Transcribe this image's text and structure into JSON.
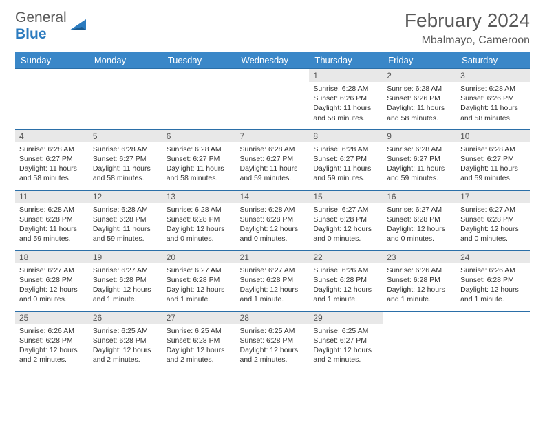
{
  "logo": {
    "word1": "General",
    "word2": "Blue"
  },
  "title": "February 2024",
  "location": "Mbalmayo, Cameroon",
  "colors": {
    "header_bg": "#3a87c8",
    "header_border": "#2b6fa8",
    "daynum_bg": "#e8e8e8",
    "text": "#333333",
    "muted": "#595959",
    "logo_blue": "#2b7bbf"
  },
  "day_headers": [
    "Sunday",
    "Monday",
    "Tuesday",
    "Wednesday",
    "Thursday",
    "Friday",
    "Saturday"
  ],
  "weeks": [
    [
      {
        "empty": true
      },
      {
        "empty": true
      },
      {
        "empty": true
      },
      {
        "empty": true
      },
      {
        "n": "1",
        "sunrise": "Sunrise: 6:28 AM",
        "sunset": "Sunset: 6:26 PM",
        "daylight": "Daylight: 11 hours and 58 minutes."
      },
      {
        "n": "2",
        "sunrise": "Sunrise: 6:28 AM",
        "sunset": "Sunset: 6:26 PM",
        "daylight": "Daylight: 11 hours and 58 minutes."
      },
      {
        "n": "3",
        "sunrise": "Sunrise: 6:28 AM",
        "sunset": "Sunset: 6:26 PM",
        "daylight": "Daylight: 11 hours and 58 minutes."
      }
    ],
    [
      {
        "n": "4",
        "sunrise": "Sunrise: 6:28 AM",
        "sunset": "Sunset: 6:27 PM",
        "daylight": "Daylight: 11 hours and 58 minutes."
      },
      {
        "n": "5",
        "sunrise": "Sunrise: 6:28 AM",
        "sunset": "Sunset: 6:27 PM",
        "daylight": "Daylight: 11 hours and 58 minutes."
      },
      {
        "n": "6",
        "sunrise": "Sunrise: 6:28 AM",
        "sunset": "Sunset: 6:27 PM",
        "daylight": "Daylight: 11 hours and 58 minutes."
      },
      {
        "n": "7",
        "sunrise": "Sunrise: 6:28 AM",
        "sunset": "Sunset: 6:27 PM",
        "daylight": "Daylight: 11 hours and 59 minutes."
      },
      {
        "n": "8",
        "sunrise": "Sunrise: 6:28 AM",
        "sunset": "Sunset: 6:27 PM",
        "daylight": "Daylight: 11 hours and 59 minutes."
      },
      {
        "n": "9",
        "sunrise": "Sunrise: 6:28 AM",
        "sunset": "Sunset: 6:27 PM",
        "daylight": "Daylight: 11 hours and 59 minutes."
      },
      {
        "n": "10",
        "sunrise": "Sunrise: 6:28 AM",
        "sunset": "Sunset: 6:27 PM",
        "daylight": "Daylight: 11 hours and 59 minutes."
      }
    ],
    [
      {
        "n": "11",
        "sunrise": "Sunrise: 6:28 AM",
        "sunset": "Sunset: 6:28 PM",
        "daylight": "Daylight: 11 hours and 59 minutes."
      },
      {
        "n": "12",
        "sunrise": "Sunrise: 6:28 AM",
        "sunset": "Sunset: 6:28 PM",
        "daylight": "Daylight: 11 hours and 59 minutes."
      },
      {
        "n": "13",
        "sunrise": "Sunrise: 6:28 AM",
        "sunset": "Sunset: 6:28 PM",
        "daylight": "Daylight: 12 hours and 0 minutes."
      },
      {
        "n": "14",
        "sunrise": "Sunrise: 6:28 AM",
        "sunset": "Sunset: 6:28 PM",
        "daylight": "Daylight: 12 hours and 0 minutes."
      },
      {
        "n": "15",
        "sunrise": "Sunrise: 6:27 AM",
        "sunset": "Sunset: 6:28 PM",
        "daylight": "Daylight: 12 hours and 0 minutes."
      },
      {
        "n": "16",
        "sunrise": "Sunrise: 6:27 AM",
        "sunset": "Sunset: 6:28 PM",
        "daylight": "Daylight: 12 hours and 0 minutes."
      },
      {
        "n": "17",
        "sunrise": "Sunrise: 6:27 AM",
        "sunset": "Sunset: 6:28 PM",
        "daylight": "Daylight: 12 hours and 0 minutes."
      }
    ],
    [
      {
        "n": "18",
        "sunrise": "Sunrise: 6:27 AM",
        "sunset": "Sunset: 6:28 PM",
        "daylight": "Daylight: 12 hours and 0 minutes."
      },
      {
        "n": "19",
        "sunrise": "Sunrise: 6:27 AM",
        "sunset": "Sunset: 6:28 PM",
        "daylight": "Daylight: 12 hours and 1 minute."
      },
      {
        "n": "20",
        "sunrise": "Sunrise: 6:27 AM",
        "sunset": "Sunset: 6:28 PM",
        "daylight": "Daylight: 12 hours and 1 minute."
      },
      {
        "n": "21",
        "sunrise": "Sunrise: 6:27 AM",
        "sunset": "Sunset: 6:28 PM",
        "daylight": "Daylight: 12 hours and 1 minute."
      },
      {
        "n": "22",
        "sunrise": "Sunrise: 6:26 AM",
        "sunset": "Sunset: 6:28 PM",
        "daylight": "Daylight: 12 hours and 1 minute."
      },
      {
        "n": "23",
        "sunrise": "Sunrise: 6:26 AM",
        "sunset": "Sunset: 6:28 PM",
        "daylight": "Daylight: 12 hours and 1 minute."
      },
      {
        "n": "24",
        "sunrise": "Sunrise: 6:26 AM",
        "sunset": "Sunset: 6:28 PM",
        "daylight": "Daylight: 12 hours and 1 minute."
      }
    ],
    [
      {
        "n": "25",
        "sunrise": "Sunrise: 6:26 AM",
        "sunset": "Sunset: 6:28 PM",
        "daylight": "Daylight: 12 hours and 2 minutes."
      },
      {
        "n": "26",
        "sunrise": "Sunrise: 6:25 AM",
        "sunset": "Sunset: 6:28 PM",
        "daylight": "Daylight: 12 hours and 2 minutes."
      },
      {
        "n": "27",
        "sunrise": "Sunrise: 6:25 AM",
        "sunset": "Sunset: 6:28 PM",
        "daylight": "Daylight: 12 hours and 2 minutes."
      },
      {
        "n": "28",
        "sunrise": "Sunrise: 6:25 AM",
        "sunset": "Sunset: 6:28 PM",
        "daylight": "Daylight: 12 hours and 2 minutes."
      },
      {
        "n": "29",
        "sunrise": "Sunrise: 6:25 AM",
        "sunset": "Sunset: 6:27 PM",
        "daylight": "Daylight: 12 hours and 2 minutes."
      },
      {
        "empty": true
      },
      {
        "empty": true
      }
    ]
  ]
}
